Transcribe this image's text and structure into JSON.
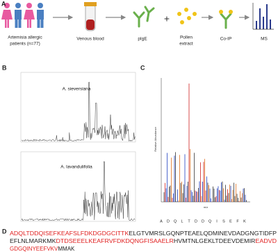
{
  "panel_a": {
    "label": "A",
    "steps": [
      {
        "lines": [
          "Artemisia allergic",
          "patients (n=77)"
        ]
      },
      {
        "lines": [
          "Venous blood"
        ]
      },
      {
        "lines": [
          "pIgE"
        ]
      },
      {
        "lines": [
          "Pollen",
          "extract"
        ]
      },
      {
        "lines": [
          "Co-IP"
        ]
      },
      {
        "lines": [
          "MS"
        ]
      }
    ]
  },
  "panel_b": {
    "label": "B",
    "traces": [
      "A. sieversiana",
      "A. lavandulifolia"
    ]
  },
  "panel_c": {
    "label": "C",
    "x_axis": "m/z",
    "y_axis": "Relative Abundance",
    "peptide": [
      "A",
      "D",
      "Q",
      "L",
      "T",
      "D",
      "D",
      "Q",
      "I",
      "S",
      "E",
      "F",
      "K"
    ]
  },
  "panel_d": {
    "label": "D",
    "lines": [
      [
        {
          "text": "ADQLTDDQISEFKEAFSLFDKDGDGCITTK",
          "highlighted": true
        },
        {
          "text": "ELGTVMRSLGQNPTEAELQDMINEVDADGNGTIDFP",
          "highlighted": false
        }
      ],
      [
        {
          "text": "EFLNLMARKMK",
          "highlighted": false
        },
        {
          "text": "DTDSEEELKEAFRVFDKDQNGFISAAELR",
          "highlighted": true
        },
        {
          "text": "HVMTNLGEKLTDEEVDEMIR",
          "highlighted": false
        },
        {
          "text": "EADVD",
          "highlighted": true
        }
      ],
      [
        {
          "text": "GDGQINYEEFVKV",
          "highlighted": true
        },
        {
          "text": "MMAK",
          "highlighted": false
        }
      ]
    ]
  }
}
